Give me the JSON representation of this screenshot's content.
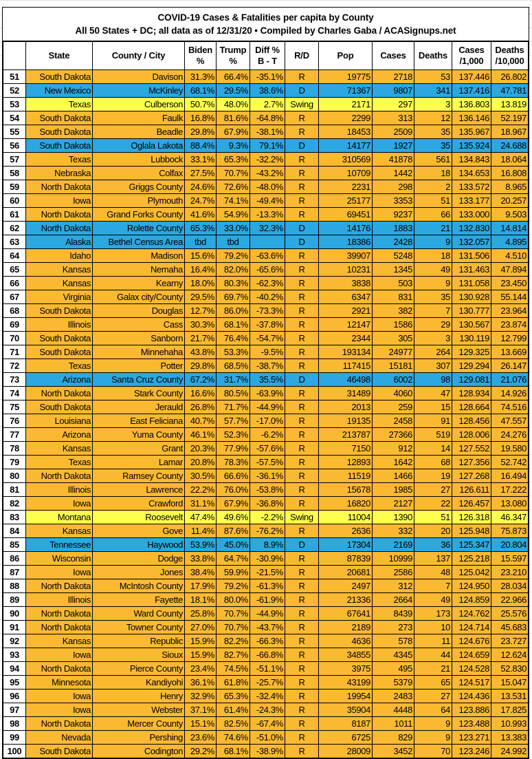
{
  "title": {
    "line1": "COVID-19 Cases & Fatalities per capita by County",
    "line2": "All 50 States + DC; all data as of 12/31/20  • Compiled by Charles Gaba / ACASignups.net"
  },
  "colors": {
    "R": "#fbb931",
    "D": "#2aa8e0",
    "Swing": "#ffff4f"
  },
  "columns": [
    "",
    "State",
    "County / City",
    "Biden %",
    "Trump %",
    "Diff % B - T",
    "R/D",
    "Pop",
    "Cases",
    "Deaths",
    "Cases /1,000",
    "Deaths /10,000"
  ],
  "rows": [
    [
      "51",
      "South Dakota",
      "Davison",
      "31.3%",
      "66.4%",
      "-35.1%",
      "R",
      "19775",
      "2718",
      "53",
      "137.446",
      "26.802"
    ],
    [
      "52",
      "New Mexico",
      "McKinley",
      "68.1%",
      "29.5%",
      "38.6%",
      "D",
      "71367",
      "9807",
      "341",
      "137.416",
      "47.781"
    ],
    [
      "53",
      "Texas",
      "Culberson",
      "50.7%",
      "48.0%",
      "2.7%",
      "Swing",
      "2171",
      "297",
      "3",
      "136.803",
      "13.819"
    ],
    [
      "54",
      "South Dakota",
      "Faulk",
      "16.8%",
      "81.6%",
      "-64.8%",
      "R",
      "2299",
      "313",
      "12",
      "136.146",
      "52.197"
    ],
    [
      "55",
      "South Dakota",
      "Beadle",
      "29.8%",
      "67.9%",
      "-38.1%",
      "R",
      "18453",
      "2509",
      "35",
      "135.967",
      "18.967"
    ],
    [
      "56",
      "South Dakota",
      "Oglala Lakota",
      "88.4%",
      "9.3%",
      "79.1%",
      "D",
      "14177",
      "1927",
      "35",
      "135.924",
      "24.688"
    ],
    [
      "57",
      "Texas",
      "Lubbock",
      "33.1%",
      "65.3%",
      "-32.2%",
      "R",
      "310569",
      "41878",
      "561",
      "134.843",
      "18.064"
    ],
    [
      "58",
      "Nebraska",
      "Colfax",
      "27.5%",
      "70.7%",
      "-43.2%",
      "R",
      "10709",
      "1442",
      "18",
      "134.653",
      "16.808"
    ],
    [
      "59",
      "North Dakota",
      "Griggs County",
      "24.6%",
      "72.6%",
      "-48.0%",
      "R",
      "2231",
      "298",
      "2",
      "133.572",
      "8.965"
    ],
    [
      "60",
      "Iowa",
      "Plymouth",
      "24.7%",
      "74.1%",
      "-49.4%",
      "R",
      "25177",
      "3353",
      "51",
      "133.177",
      "20.257"
    ],
    [
      "61",
      "North Dakota",
      "Grand Forks County",
      "41.6%",
      "54.9%",
      "-13.3%",
      "R",
      "69451",
      "9237",
      "66",
      "133.000",
      "9.503"
    ],
    [
      "62",
      "North Dakota",
      "Rolette County",
      "65.3%",
      "33.0%",
      "32.3%",
      "D",
      "14176",
      "1883",
      "21",
      "132.830",
      "14.814"
    ],
    [
      "63",
      "Alaska",
      "Bethel Census Area",
      "tbd",
      "tbd",
      "",
      "D",
      "18386",
      "2428",
      "9",
      "132.057",
      "4.895"
    ],
    [
      "64",
      "Idaho",
      "Madison",
      "15.6%",
      "79.2%",
      "-63.6%",
      "R",
      "39907",
      "5248",
      "18",
      "131.506",
      "4.510"
    ],
    [
      "65",
      "Kansas",
      "Nemaha",
      "16.4%",
      "82.0%",
      "-65.6%",
      "R",
      "10231",
      "1345",
      "49",
      "131.463",
      "47.894"
    ],
    [
      "66",
      "Kansas",
      "Kearny",
      "18.0%",
      "80.3%",
      "-62.3%",
      "R",
      "3838",
      "503",
      "9",
      "131.058",
      "23.450"
    ],
    [
      "67",
      "Virginia",
      "Galax city/County",
      "29.5%",
      "69.7%",
      "-40.2%",
      "R",
      "6347",
      "831",
      "35",
      "130.928",
      "55.144"
    ],
    [
      "68",
      "South Dakota",
      "Douglas",
      "12.7%",
      "86.0%",
      "-73.3%",
      "R",
      "2921",
      "382",
      "7",
      "130.777",
      "23.964"
    ],
    [
      "69",
      "Illinois",
      "Cass",
      "30.3%",
      "68.1%",
      "-37.8%",
      "R",
      "12147",
      "1586",
      "29",
      "130.567",
      "23.874"
    ],
    [
      "70",
      "South Dakota",
      "Sanborn",
      "21.7%",
      "76.4%",
      "-54.7%",
      "R",
      "2344",
      "305",
      "3",
      "130.119",
      "12.799"
    ],
    [
      "71",
      "South Dakota",
      "Minnehaha",
      "43.8%",
      "53.3%",
      "-9.5%",
      "R",
      "193134",
      "24977",
      "264",
      "129.325",
      "13.669"
    ],
    [
      "72",
      "Texas",
      "Potter",
      "29.8%",
      "68.5%",
      "-38.7%",
      "R",
      "117415",
      "15181",
      "307",
      "129.294",
      "26.147"
    ],
    [
      "73",
      "Arizona",
      "Santa Cruz County",
      "67.2%",
      "31.7%",
      "35.5%",
      "D",
      "46498",
      "6002",
      "98",
      "129.081",
      "21.076"
    ],
    [
      "74",
      "North Dakota",
      "Stark County",
      "16.6%",
      "80.5%",
      "-63.9%",
      "R",
      "31489",
      "4060",
      "47",
      "128.934",
      "14.926"
    ],
    [
      "75",
      "South Dakota",
      "Jerauld",
      "26.8%",
      "71.7%",
      "-44.9%",
      "R",
      "2013",
      "259",
      "15",
      "128.664",
      "74.516"
    ],
    [
      "76",
      "Louisiana",
      "East Feliciana",
      "40.7%",
      "57.7%",
      "-17.0%",
      "R",
      "19135",
      "2458",
      "91",
      "128.456",
      "47.557"
    ],
    [
      "77",
      "Arizona",
      "Yuma County",
      "46.1%",
      "52.3%",
      "-6.2%",
      "R",
      "213787",
      "27366",
      "519",
      "128.006",
      "24.276"
    ],
    [
      "78",
      "Kansas",
      "Grant",
      "20.3%",
      "77.9%",
      "-57.6%",
      "R",
      "7150",
      "912",
      "14",
      "127.552",
      "19.580"
    ],
    [
      "79",
      "Texas",
      "Lamar",
      "20.8%",
      "78.3%",
      "-57.5%",
      "R",
      "12893",
      "1642",
      "68",
      "127.356",
      "52.742"
    ],
    [
      "80",
      "North Dakota",
      "Ramsey County",
      "30.5%",
      "66.6%",
      "-36.1%",
      "R",
      "11519",
      "1466",
      "19",
      "127.268",
      "16.494"
    ],
    [
      "81",
      "Illinois",
      "Lawrence",
      "22.2%",
      "76.0%",
      "-53.8%",
      "R",
      "15678",
      "1985",
      "27",
      "126.611",
      "17.222"
    ],
    [
      "82",
      "Iowa",
      "Crawford",
      "31.1%",
      "67.9%",
      "-36.8%",
      "R",
      "16820",
      "2127",
      "22",
      "126.457",
      "13.080"
    ],
    [
      "83",
      "Montana",
      "Roosevelt",
      "47.4%",
      "49.6%",
      "-2.2%",
      "Swing",
      "11004",
      "1390",
      "51",
      "126.318",
      "46.347"
    ],
    [
      "84",
      "Kansas",
      "Gove",
      "11.4%",
      "87.6%",
      "-76.2%",
      "R",
      "2636",
      "332",
      "20",
      "125.948",
      "75.873"
    ],
    [
      "85",
      "Tennessee",
      "Haywood",
      "53.9%",
      "45.0%",
      "8.9%",
      "D",
      "17304",
      "2169",
      "36",
      "125.347",
      "20.804"
    ],
    [
      "86",
      "Wisconsin",
      "Dodge",
      "33.8%",
      "64.7%",
      "-30.9%",
      "R",
      "87839",
      "10999",
      "137",
      "125.218",
      "15.597"
    ],
    [
      "87",
      "Iowa",
      "Jones",
      "38.4%",
      "59.9%",
      "-21.5%",
      "R",
      "20681",
      "2586",
      "48",
      "125.042",
      "23.210"
    ],
    [
      "88",
      "North Dakota",
      "McIntosh County",
      "17.9%",
      "79.2%",
      "-61.3%",
      "R",
      "2497",
      "312",
      "7",
      "124.950",
      "28.034"
    ],
    [
      "89",
      "Illinois",
      "Fayette",
      "18.1%",
      "80.0%",
      "-61.9%",
      "R",
      "21336",
      "2664",
      "49",
      "124.859",
      "22.966"
    ],
    [
      "90",
      "North Dakota",
      "Ward County",
      "25.8%",
      "70.7%",
      "-44.9%",
      "R",
      "67641",
      "8439",
      "173",
      "124.762",
      "25.576"
    ],
    [
      "91",
      "North Dakota",
      "Towner County",
      "27.0%",
      "70.7%",
      "-43.7%",
      "R",
      "2189",
      "273",
      "10",
      "124.714",
      "45.683"
    ],
    [
      "92",
      "Kansas",
      "Republic",
      "15.9%",
      "82.2%",
      "-66.3%",
      "R",
      "4636",
      "578",
      "11",
      "124.676",
      "23.727"
    ],
    [
      "93",
      "Iowa",
      "Sioux",
      "15.9%",
      "82.7%",
      "-66.8%",
      "R",
      "34855",
      "4345",
      "44",
      "124.659",
      "12.624"
    ],
    [
      "94",
      "North Dakota",
      "Pierce County",
      "23.4%",
      "74.5%",
      "-51.1%",
      "R",
      "3975",
      "495",
      "21",
      "124.528",
      "52.830"
    ],
    [
      "95",
      "Minnesota",
      "Kandiyohi",
      "36.1%",
      "61.8%",
      "-25.7%",
      "R",
      "43199",
      "5379",
      "65",
      "124.517",
      "15.047"
    ],
    [
      "96",
      "Iowa",
      "Henry",
      "32.9%",
      "65.3%",
      "-32.4%",
      "R",
      "19954",
      "2483",
      "27",
      "124.436",
      "13.531"
    ],
    [
      "97",
      "Iowa",
      "Webster",
      "37.1%",
      "61.4%",
      "-24.3%",
      "R",
      "35904",
      "4448",
      "64",
      "123.886",
      "17.825"
    ],
    [
      "98",
      "North Dakota",
      "Mercer County",
      "15.1%",
      "82.5%",
      "-67.4%",
      "R",
      "8187",
      "1011",
      "9",
      "123.488",
      "10.993"
    ],
    [
      "99",
      "Nevada",
      "Pershing",
      "23.6%",
      "74.6%",
      "-51.0%",
      "R",
      "6725",
      "829",
      "9",
      "123.271",
      "13.383"
    ],
    [
      "100",
      "South Dakota",
      "Codington",
      "29.2%",
      "68.1%",
      "-38.9%",
      "R",
      "28009",
      "3452",
      "70",
      "123.246",
      "24.992"
    ]
  ]
}
